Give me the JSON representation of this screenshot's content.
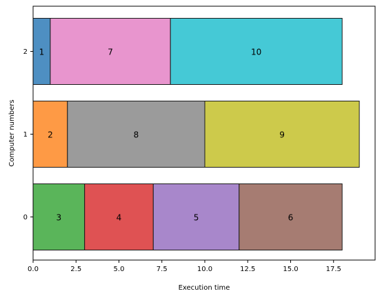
{
  "chart_data": {
    "type": "bar",
    "orientation": "horizontal-stacked",
    "xlabel": "Execution time",
    "ylabel": "Computer numbers",
    "xlim": [
      0,
      20
    ],
    "x_ticks": [
      "0.0",
      "2.5",
      "5.0",
      "7.5",
      "10.0",
      "12.5",
      "15.0",
      "17.5"
    ],
    "categories": [
      "0",
      "1",
      "2"
    ],
    "grid": false,
    "legend": "none",
    "tasks": [
      {
        "label": "3",
        "row": 0,
        "start": 0,
        "end": 3,
        "color": "#5ab55a"
      },
      {
        "label": "4",
        "row": 0,
        "start": 3,
        "end": 7,
        "color": "#df5253"
      },
      {
        "label": "5",
        "row": 0,
        "start": 7,
        "end": 12,
        "color": "#a887cb"
      },
      {
        "label": "6",
        "row": 0,
        "start": 12,
        "end": 18,
        "color": "#a67c72"
      },
      {
        "label": "2",
        "row": 1,
        "start": 0,
        "end": 2,
        "color": "#fe9a45"
      },
      {
        "label": "8",
        "row": 1,
        "start": 2,
        "end": 10,
        "color": "#9b9b9b"
      },
      {
        "label": "9",
        "row": 1,
        "start": 10,
        "end": 19,
        "color": "#cdca4b"
      },
      {
        "label": "1",
        "row": 2,
        "start": 0,
        "end": 1,
        "color": "#4e8fc2"
      },
      {
        "label": "7",
        "row": 2,
        "start": 1,
        "end": 8,
        "color": "#e895ce"
      },
      {
        "label": "10",
        "row": 2,
        "start": 8,
        "end": 18,
        "color": "#45c9d6"
      }
    ]
  }
}
